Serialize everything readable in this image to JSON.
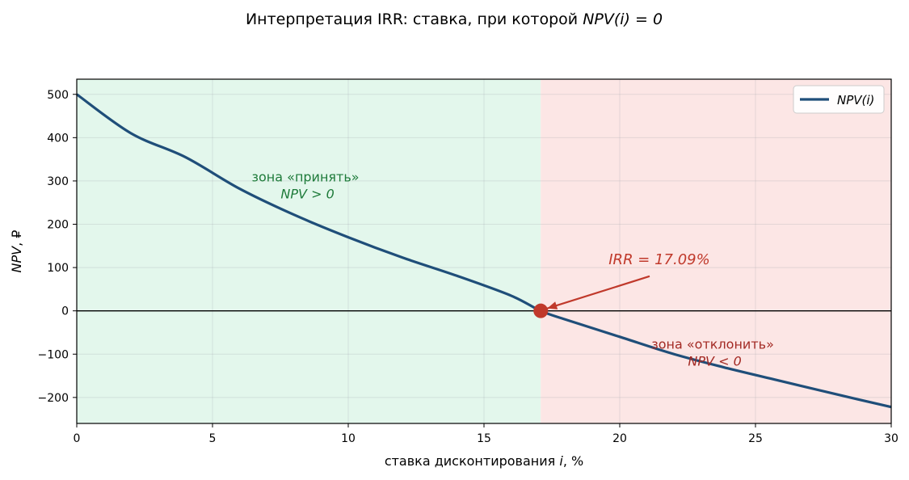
{
  "chart_data": {
    "type": "line",
    "title_prefix": "Интерпретация IRR: ставка, при которой ",
    "title_math": "NPV(i) = 0",
    "xlabel_prefix": "ставка дисконтирования ",
    "xlabel_var": "i",
    "xlabel_suffix": ", %",
    "ylabel_var": "NPV",
    "ylabel_suffix": ", ₽",
    "xlim": [
      0,
      30
    ],
    "ylim": [
      -260,
      535
    ],
    "xticks": [
      0,
      5,
      10,
      15,
      20,
      25,
      30
    ],
    "yticks": [
      -200,
      -100,
      0,
      100,
      200,
      300,
      400,
      500
    ],
    "x_tick_labels": [
      "0",
      "5",
      "10",
      "15",
      "20",
      "25",
      "30"
    ],
    "y_tick_labels": [
      "−200",
      "−100",
      "0",
      "100",
      "200",
      "300",
      "400",
      "500"
    ],
    "grid": true,
    "legend_position": "top-right",
    "series": [
      {
        "name": "NPV(i)",
        "color": "#1f4e79",
        "x": [
          0,
          2,
          4,
          6,
          8,
          10,
          12,
          14,
          16,
          17.09,
          18,
          20,
          22,
          24,
          26,
          28,
          30
        ],
        "y": [
          500,
          410,
          355,
          282,
          222,
          170,
          123,
          81,
          35,
          0,
          -20,
          -60,
          -100,
          -133,
          -163,
          -193,
          -222
        ]
      }
    ],
    "irr": {
      "x": 17.09,
      "y": 0,
      "label": "IRR = 17.09%",
      "color": "#c0392b"
    },
    "zones": {
      "accept": {
        "x_range": [
          0,
          17.09
        ],
        "fill": "#e3f7ec",
        "text_color": "#1e7b3a",
        "label_line1": "зона «принять»",
        "label_line2": "NPV > 0",
        "label_x": 8.5,
        "label_y": 295
      },
      "reject": {
        "x_range": [
          17.09,
          30
        ],
        "fill": "#fce6e5",
        "text_color": "#a32a24",
        "label_line1": "зона «отклонить»",
        "label_line2": "NPV < 0",
        "label_x": 23.5,
        "label_y": -100
      }
    },
    "irr_label_pos": [
      22.5,
      93
    ]
  }
}
